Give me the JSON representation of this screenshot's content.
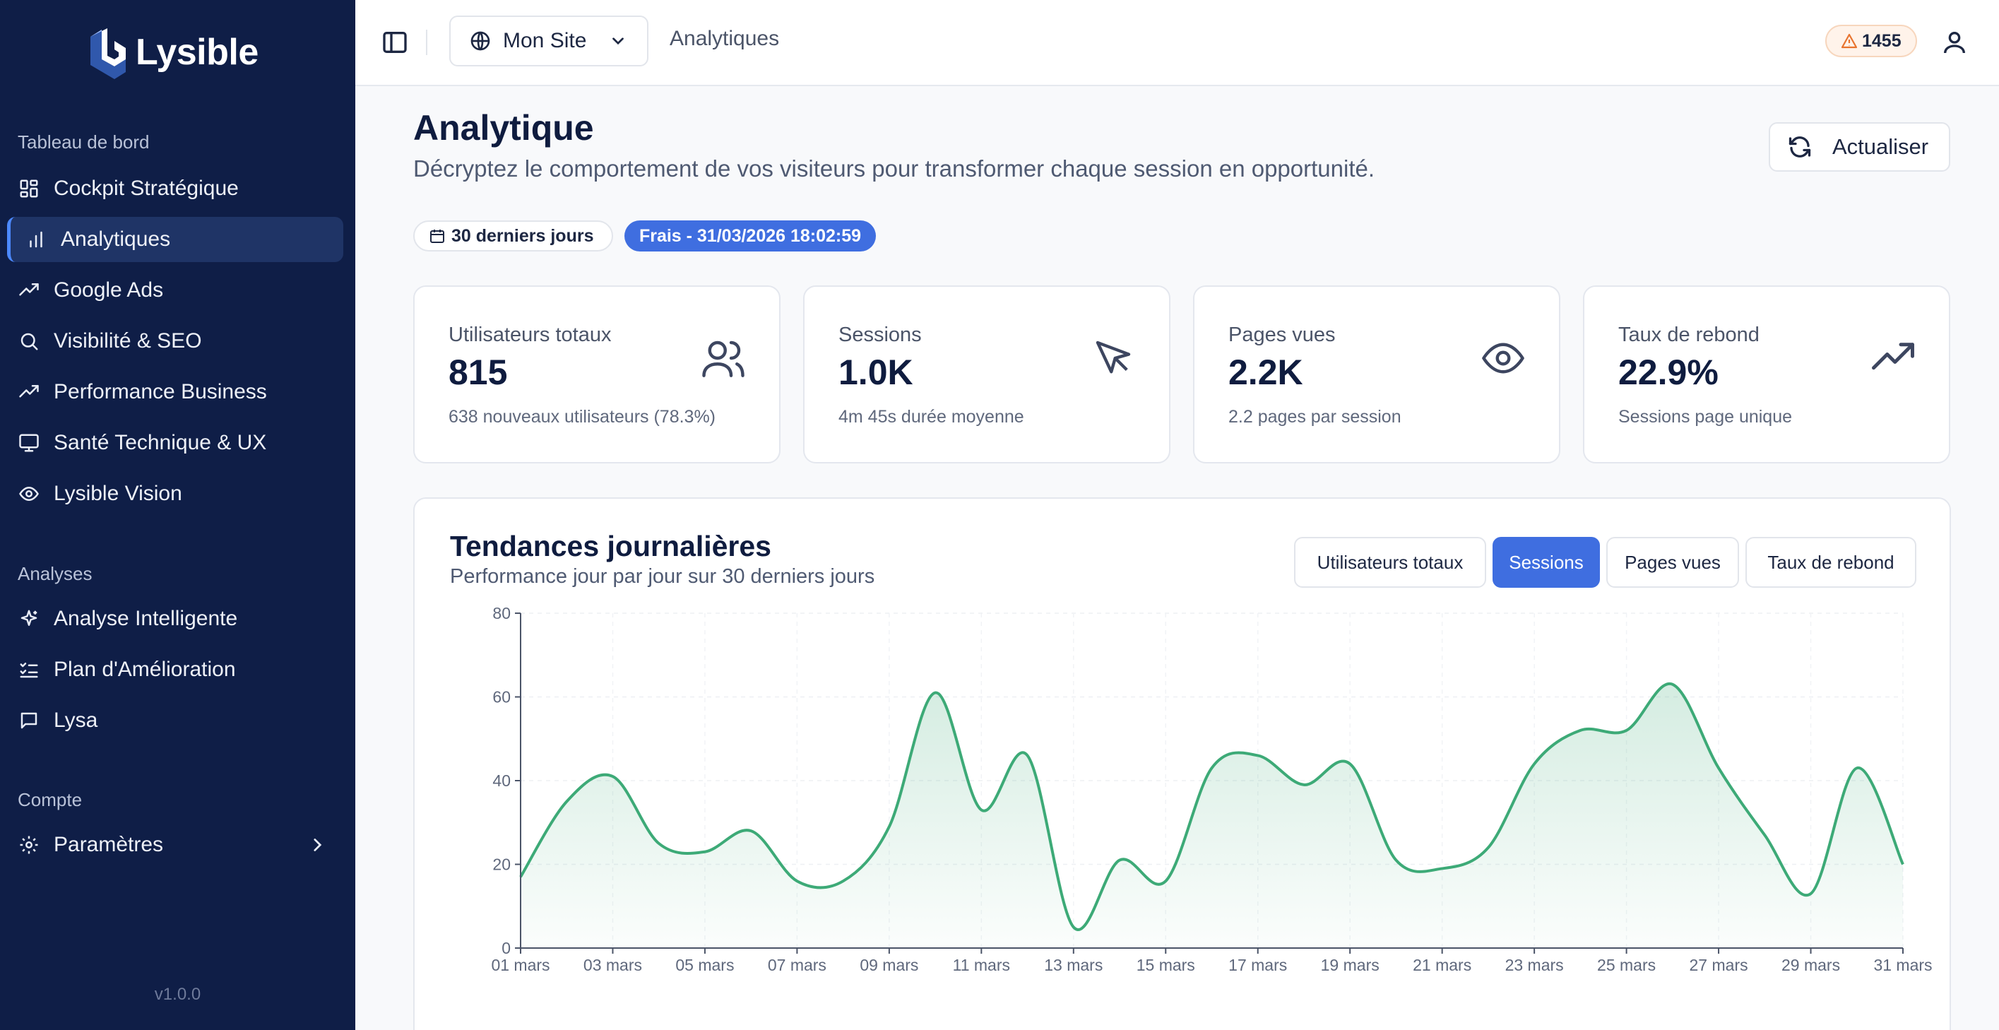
{
  "brand": {
    "name": "Lysible"
  },
  "sidebar": {
    "sections": [
      {
        "label": "Tableau de bord"
      },
      {
        "label": "Analyses"
      },
      {
        "label": "Compte"
      }
    ],
    "items": [
      {
        "label": "Cockpit Stratégique",
        "icon": "dashboard-grid-icon"
      },
      {
        "label": "Analytiques",
        "icon": "bar-chart-icon",
        "active": true
      },
      {
        "label": "Google Ads",
        "icon": "trending-up-icon"
      },
      {
        "label": "Visibilité & SEO",
        "icon": "search-icon"
      },
      {
        "label": "Performance Business",
        "icon": "trending-up-icon"
      },
      {
        "label": "Santé Technique & UX",
        "icon": "monitor-icon"
      },
      {
        "label": "Lysible Vision",
        "icon": "eye-icon"
      },
      {
        "label": "Analyse Intelligente",
        "icon": "sparkles-icon"
      },
      {
        "label": "Plan d'Amélioration",
        "icon": "checklist-icon"
      },
      {
        "label": "Lysa",
        "icon": "chat-icon"
      },
      {
        "label": "Paramètres",
        "icon": "gear-icon"
      }
    ],
    "version": "v1.0.0"
  },
  "topbar": {
    "site_name": "Mon Site",
    "breadcrumb": "Analytiques",
    "alert_count": "1455"
  },
  "header": {
    "title": "Analytique",
    "subtitle": "Décryptez le comportement de vos visiteurs pour transformer chaque session en opportunité.",
    "refresh_label": "Actualiser",
    "period_chip": "30 derniers jours",
    "freshness_chip": "Frais - 31/03/2026 18:02:59"
  },
  "stats": [
    {
      "label": "Utilisateurs totaux",
      "value": "815",
      "sub": "638 nouveaux utilisateurs (78.3%)",
      "icon": "users-icon"
    },
    {
      "label": "Sessions",
      "value": "1.0K",
      "sub": "4m 45s durée moyenne",
      "icon": "cursor-icon"
    },
    {
      "label": "Pages vues",
      "value": "2.2K",
      "sub": "2.2 pages par session",
      "icon": "eye-icon"
    },
    {
      "label": "Taux de rebond",
      "value": "22.9%",
      "sub": "Sessions page unique",
      "icon": "trending-up-icon"
    }
  ],
  "trends": {
    "title": "Tendances journalières",
    "subtitle": "Performance jour par jour sur 30 derniers jours",
    "tabs": [
      "Utilisateurs totaux",
      "Sessions",
      "Pages vues",
      "Taux de rebond"
    ],
    "active_tab": "Sessions"
  },
  "colors": {
    "sidebar": "#0f1e47",
    "accent": "#3f6ee0",
    "series": "#3daa77"
  },
  "chart_data": {
    "type": "area",
    "x": [
      "01 mars",
      "02 mars",
      "03 mars",
      "04 mars",
      "05 mars",
      "06 mars",
      "07 mars",
      "08 mars",
      "09 mars",
      "10 mars",
      "11 mars",
      "12 mars",
      "13 mars",
      "14 mars",
      "15 mars",
      "16 mars",
      "17 mars",
      "18 mars",
      "19 mars",
      "20 mars",
      "21 mars",
      "22 mars",
      "23 mars",
      "24 mars",
      "25 mars",
      "26 mars",
      "27 mars",
      "28 mars",
      "29 mars",
      "30 mars",
      "31 mars"
    ],
    "x_tick_labels": [
      "01 mars",
      "03 mars",
      "05 mars",
      "07 mars",
      "09 mars",
      "11 mars",
      "13 mars",
      "15 mars",
      "17 mars",
      "19 mars",
      "21 mars",
      "23 mars",
      "25 mars",
      "27 mars",
      "29 mars",
      "31 mars"
    ],
    "series": [
      {
        "values": [
          17,
          35,
          41,
          25,
          23,
          28,
          16,
          16,
          29,
          61,
          33,
          46,
          5,
          21,
          16,
          43,
          46,
          39,
          44,
          21,
          19,
          24,
          44,
          52,
          52,
          63,
          43,
          27,
          13,
          43,
          20
        ]
      }
    ],
    "ylim": [
      0,
      80
    ],
    "y_ticks": [
      0,
      20,
      40,
      60,
      80
    ],
    "grid": true
  }
}
